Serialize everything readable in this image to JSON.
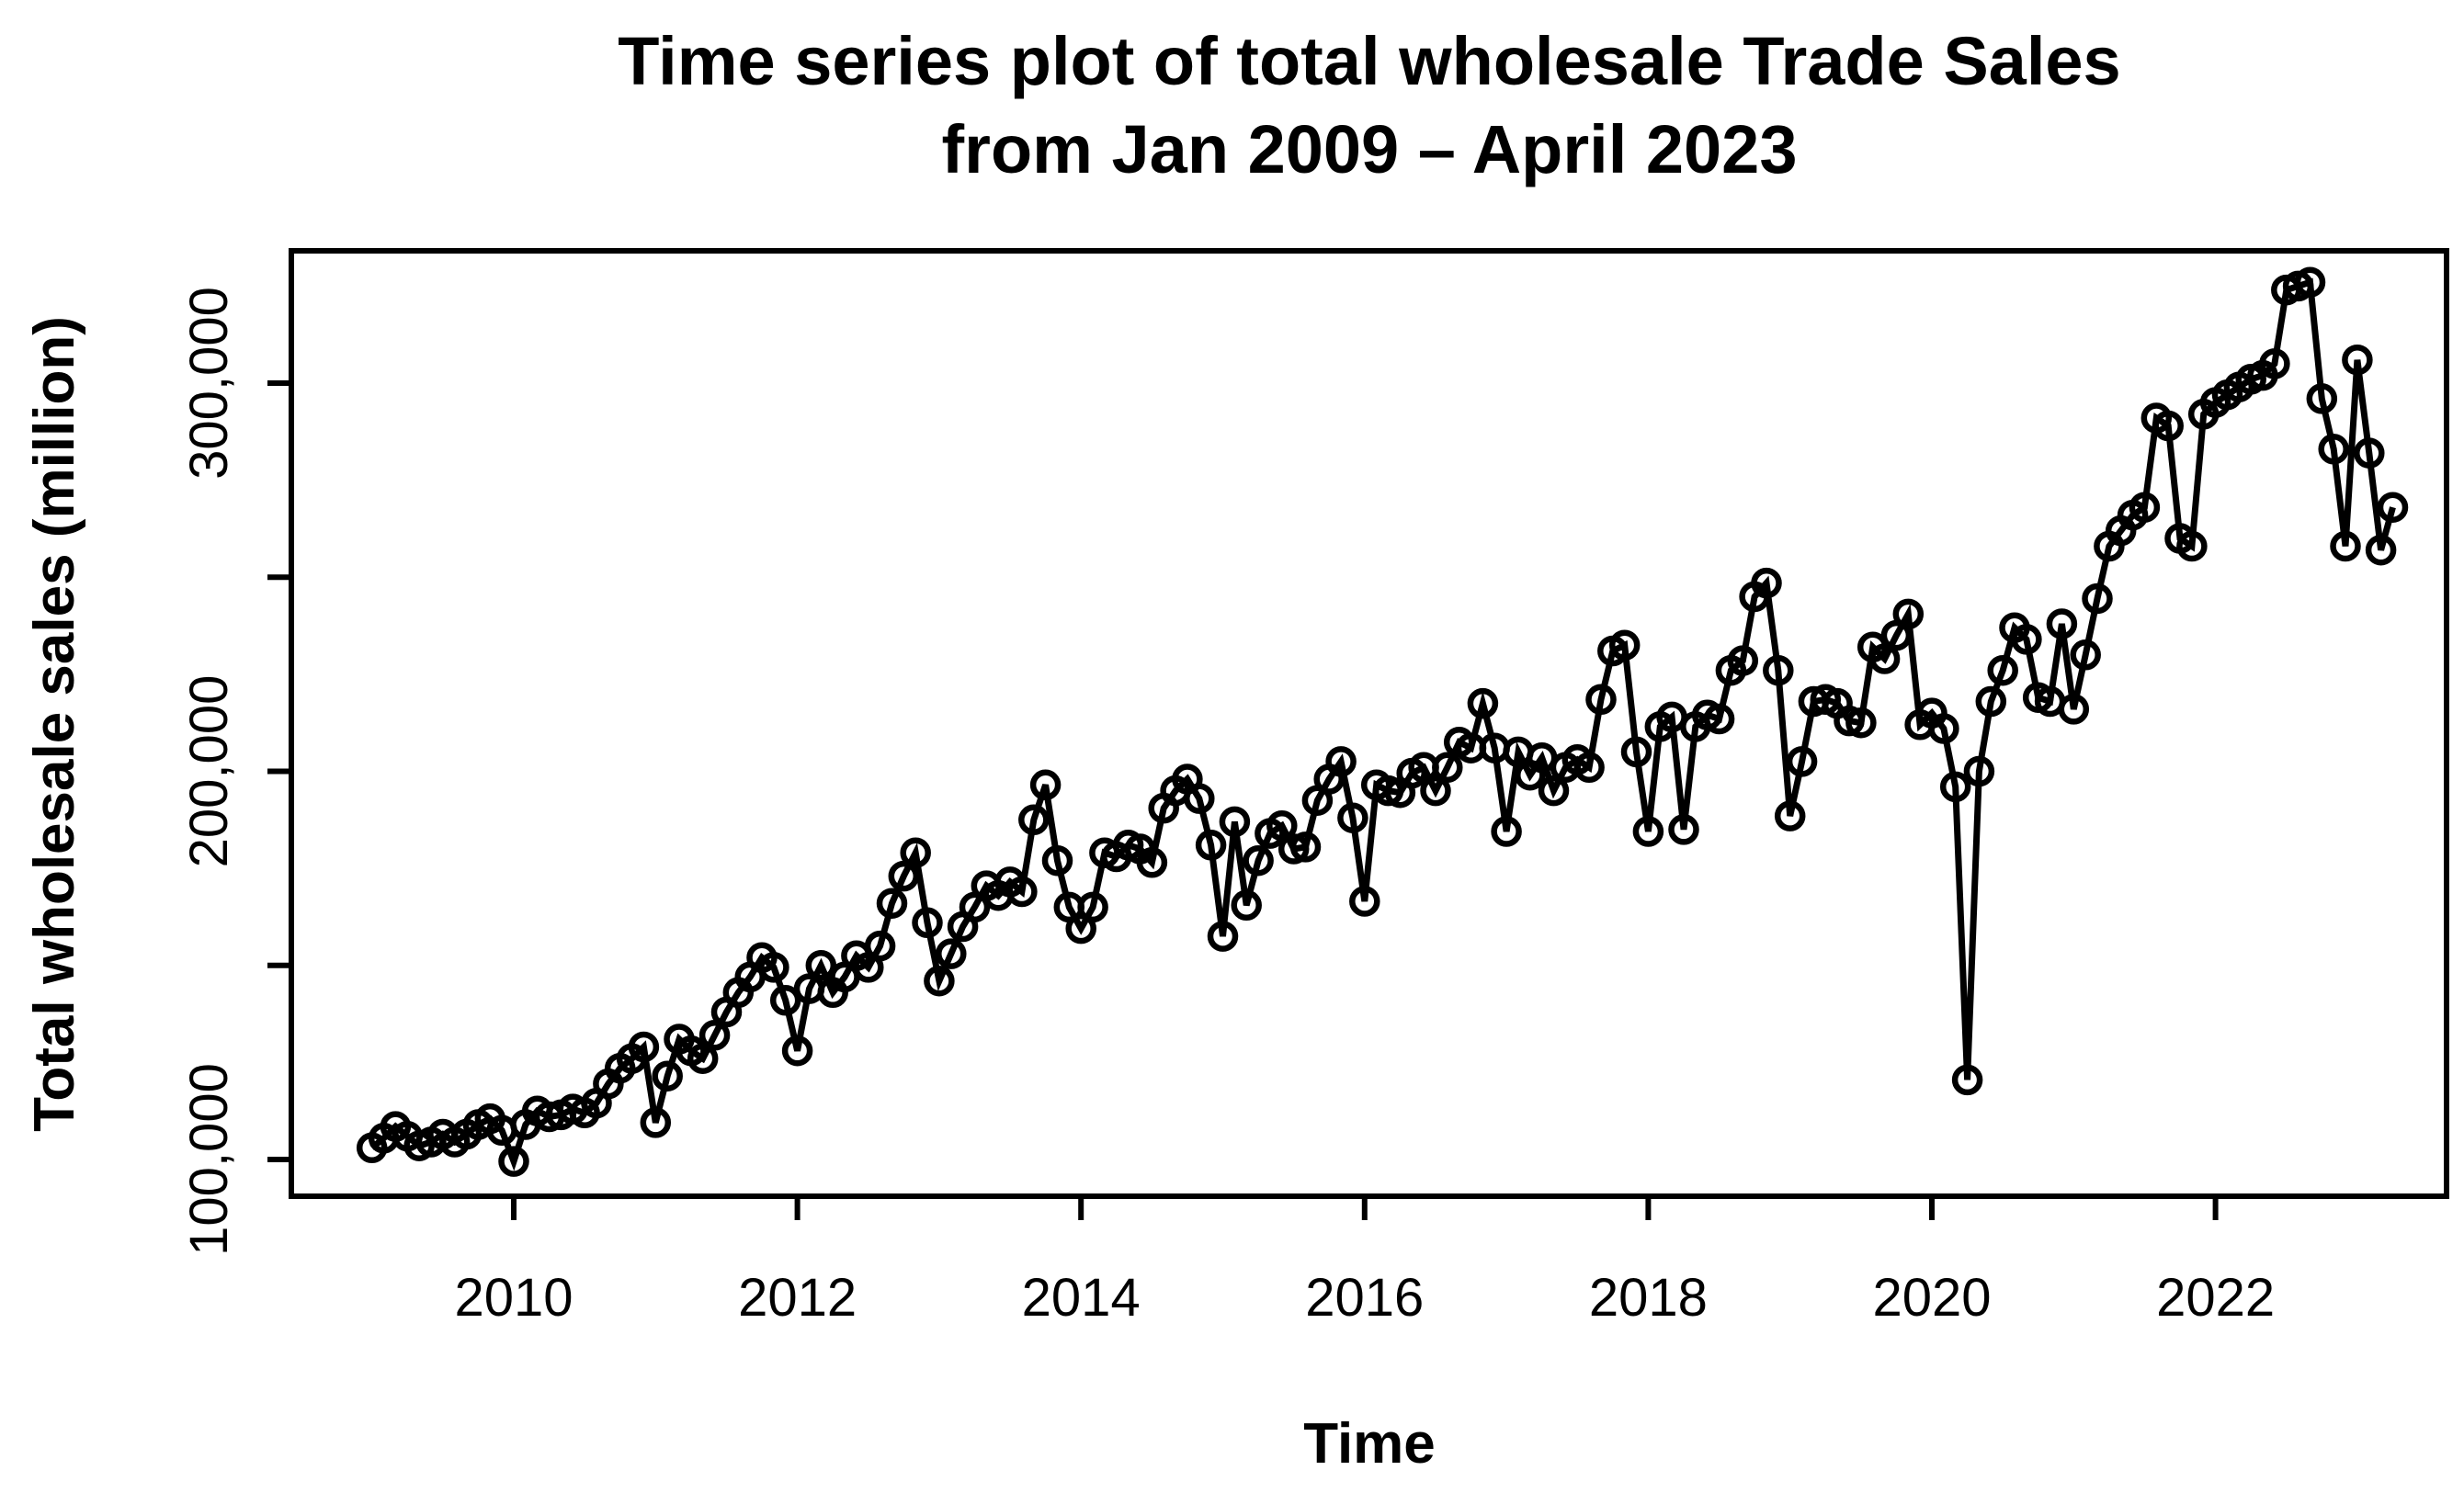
{
  "title": {
    "line1": "Time series plot of total wholesale Trade Sales",
    "line2": "from Jan 2009 – April 2023"
  },
  "axes": {
    "x_label": "Time",
    "y_label": "Total wholesale sales (million)",
    "x_ticks": [
      {
        "year": 2010,
        "label": "2010"
      },
      {
        "year": 2012,
        "label": "2012"
      },
      {
        "year": 2014,
        "label": "2014"
      },
      {
        "year": 2016,
        "label": "2016"
      },
      {
        "year": 2018,
        "label": "2018"
      },
      {
        "year": 2020,
        "label": "2020"
      },
      {
        "year": 2022,
        "label": "2022"
      }
    ],
    "y_ticks": [
      {
        "value": 100000,
        "label": "100,000"
      },
      {
        "value": 150000,
        "label": ""
      },
      {
        "value": 200000,
        "label": "200,000"
      },
      {
        "value": 250000,
        "label": ""
      },
      {
        "value": 300000,
        "label": "300,000"
      }
    ]
  },
  "style": {
    "line_color": "#000000",
    "marker": "open-circle",
    "background": "#ffffff"
  },
  "chart_data": {
    "type": "line",
    "title": "Time series plot of total wholesale Trade Sales from Jan 2009 – April 2023",
    "xlabel": "Time",
    "ylabel": "Total wholesale sales (million)",
    "x_start_year": 2009,
    "x_end": "April 2023",
    "frequency": "monthly",
    "xlim": [
      2009.0,
      2023.25
    ],
    "ylim": [
      90000,
      336000
    ],
    "grid": false,
    "legend_position": "none",
    "series": [
      {
        "name": "Total wholesale sales",
        "values": [
          103000,
          105500,
          108500,
          106000,
          103500,
          104500,
          106500,
          104500,
          106500,
          109000,
          110500,
          107500,
          99500,
          109000,
          112500,
          111000,
          111500,
          113000,
          112000,
          114500,
          119500,
          123500,
          126000,
          129000,
          109500,
          121500,
          131000,
          128000,
          126000,
          132000,
          138000,
          143000,
          147000,
          152000,
          149500,
          141000,
          128000,
          144000,
          150000,
          143000,
          147000,
          152500,
          149500,
          155000,
          166000,
          173000,
          179000,
          161000,
          146000,
          153000,
          160000,
          165000,
          170500,
          168000,
          171500,
          169000,
          187500,
          196500,
          177000,
          165000,
          159500,
          165000,
          179000,
          178000,
          181000,
          180000,
          176500,
          190500,
          195000,
          198000,
          193000,
          181000,
          157500,
          187000,
          165500,
          177000,
          184000,
          186000,
          180000,
          180500,
          192500,
          198000,
          202500,
          188000,
          166500,
          196500,
          195000,
          194500,
          199500,
          201000,
          195000,
          201000,
          207500,
          206000,
          217500,
          206000,
          184500,
          205000,
          199000,
          203500,
          195000,
          201000,
          203000,
          201000,
          218500,
          231000,
          232500,
          205000,
          184500,
          211500,
          214000,
          185000,
          211500,
          214500,
          213500,
          226000,
          228500,
          245000,
          248500,
          226000,
          188500,
          202500,
          218000,
          218500,
          217500,
          213000,
          212500,
          232000,
          229000,
          235000,
          240500,
          212000,
          215000,
          211000,
          196000,
          120500,
          200000,
          218000,
          226000,
          237000,
          234000,
          219000,
          218000,
          238000,
          216000,
          230000,
          244500,
          258000,
          262000,
          266000,
          268000,
          291000,
          289000,
          260000,
          258000,
          292000,
          295000,
          297000,
          299000,
          301000,
          302000,
          305000,
          324000,
          325000,
          326000,
          296000,
          283000,
          258000,
          306000,
          282000,
          257000,
          268000
        ]
      }
    ]
  }
}
